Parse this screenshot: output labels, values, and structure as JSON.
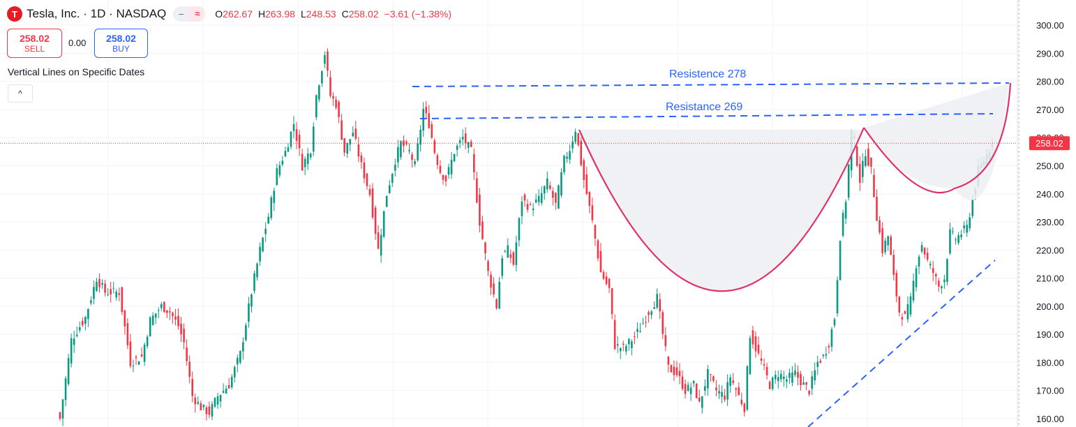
{
  "header": {
    "logo_letter": "T",
    "symbol_title": "Tesla, Inc. · 1D · NASDAQ",
    "open_label": "O",
    "open_value": "262.67",
    "high_label": "H",
    "high_value": "263.98",
    "low_label": "L",
    "low_value": "248.53",
    "close_label": "C",
    "close_value": "258.02",
    "change": "−3.61 (−1.38%)",
    "pill_minus": "−",
    "pill_wave": "≈"
  },
  "trade": {
    "sell_price": "258.02",
    "sell_label": "SELL",
    "spread": "0.00",
    "buy_price": "258.02",
    "buy_label": "BUY"
  },
  "indicator": {
    "name": "Vertical Lines on Specific Dates",
    "collapse_glyph": "^"
  },
  "colors": {
    "up": "#089981",
    "down": "#f23645",
    "drawing": "#e0306a",
    "resistance": "#2962ff",
    "fill": "#eceef2",
    "price_line": "#f23645"
  },
  "chart_data": {
    "type": "candlestick",
    "title": "Tesla, Inc. · 1D · NASDAQ",
    "ylim": [
      157,
      306
    ],
    "y_ticks": [
      "300.00",
      "290.00",
      "280.00",
      "270.00",
      "260.00",
      "250.00",
      "240.00",
      "230.00",
      "220.00",
      "210.00",
      "200.00",
      "190.00",
      "180.00",
      "170.00",
      "160.00"
    ],
    "last_price": "258.02",
    "close_series": [
      {
        "i": 0,
        "c": 160
      },
      {
        "i": 4,
        "c": 188
      },
      {
        "i": 9,
        "c": 196
      },
      {
        "i": 13,
        "c": 210
      },
      {
        "i": 16,
        "c": 205
      },
      {
        "i": 21,
        "c": 205
      },
      {
        "i": 25,
        "c": 180
      },
      {
        "i": 29,
        "c": 182
      },
      {
        "i": 32,
        "c": 195
      },
      {
        "i": 36,
        "c": 200
      },
      {
        "i": 39,
        "c": 198
      },
      {
        "i": 42,
        "c": 193
      },
      {
        "i": 44,
        "c": 187
      },
      {
        "i": 47,
        "c": 168
      },
      {
        "i": 50,
        "c": 164
      },
      {
        "i": 53,
        "c": 162
      },
      {
        "i": 56,
        "c": 168
      },
      {
        "i": 60,
        "c": 172
      },
      {
        "i": 64,
        "c": 183
      },
      {
        "i": 68,
        "c": 205
      },
      {
        "i": 71,
        "c": 220
      },
      {
        "i": 74,
        "c": 232
      },
      {
        "i": 77,
        "c": 248
      },
      {
        "i": 80,
        "c": 255
      },
      {
        "i": 83,
        "c": 265
      },
      {
        "i": 86,
        "c": 250
      },
      {
        "i": 89,
        "c": 256
      },
      {
        "i": 91,
        "c": 275
      },
      {
        "i": 94,
        "c": 290
      },
      {
        "i": 96,
        "c": 275
      },
      {
        "i": 98,
        "c": 272
      },
      {
        "i": 101,
        "c": 255
      },
      {
        "i": 104,
        "c": 262
      },
      {
        "i": 107,
        "c": 250
      },
      {
        "i": 110,
        "c": 240
      },
      {
        "i": 113,
        "c": 220
      },
      {
        "i": 116,
        "c": 240
      },
      {
        "i": 119,
        "c": 252
      },
      {
        "i": 121,
        "c": 258
      },
      {
        "i": 124,
        "c": 255
      },
      {
        "i": 126,
        "c": 250
      },
      {
        "i": 129,
        "c": 270
      },
      {
        "i": 131,
        "c": 265
      },
      {
        "i": 133,
        "c": 255
      },
      {
        "i": 135,
        "c": 248
      },
      {
        "i": 137,
        "c": 245
      },
      {
        "i": 140,
        "c": 255
      },
      {
        "i": 143,
        "c": 260
      },
      {
        "i": 146,
        "c": 255
      },
      {
        "i": 149,
        "c": 230
      },
      {
        "i": 152,
        "c": 212
      },
      {
        "i": 155,
        "c": 200
      },
      {
        "i": 157,
        "c": 218
      },
      {
        "i": 159,
        "c": 220
      },
      {
        "i": 161,
        "c": 215
      },
      {
        "i": 164,
        "c": 238
      },
      {
        "i": 167,
        "c": 235
      },
      {
        "i": 170,
        "c": 238
      },
      {
        "i": 173,
        "c": 244
      },
      {
        "i": 176,
        "c": 236
      },
      {
        "i": 179,
        "c": 252
      },
      {
        "i": 181,
        "c": 256
      },
      {
        "i": 183,
        "c": 263
      },
      {
        "i": 186,
        "c": 245
      },
      {
        "i": 189,
        "c": 230
      },
      {
        "i": 192,
        "c": 212
      },
      {
        "i": 195,
        "c": 206
      },
      {
        "i": 197,
        "c": 186
      },
      {
        "i": 200,
        "c": 185
      },
      {
        "i": 203,
        "c": 188
      },
      {
        "i": 206,
        "c": 192
      },
      {
        "i": 209,
        "c": 198
      },
      {
        "i": 212,
        "c": 203
      },
      {
        "i": 214,
        "c": 190
      },
      {
        "i": 216,
        "c": 178
      },
      {
        "i": 219,
        "c": 176
      },
      {
        "i": 222,
        "c": 170
      },
      {
        "i": 225,
        "c": 172
      },
      {
        "i": 227,
        "c": 165
      },
      {
        "i": 230,
        "c": 176
      },
      {
        "i": 233,
        "c": 170
      },
      {
        "i": 236,
        "c": 168
      },
      {
        "i": 238,
        "c": 175
      },
      {
        "i": 241,
        "c": 168
      },
      {
        "i": 243,
        "c": 164
      },
      {
        "i": 245,
        "c": 190
      },
      {
        "i": 247,
        "c": 185
      },
      {
        "i": 249,
        "c": 180
      },
      {
        "i": 252,
        "c": 172
      },
      {
        "i": 255,
        "c": 176
      },
      {
        "i": 258,
        "c": 174
      },
      {
        "i": 261,
        "c": 176
      },
      {
        "i": 264,
        "c": 172
      },
      {
        "i": 266,
        "c": 170
      },
      {
        "i": 269,
        "c": 180
      },
      {
        "i": 271,
        "c": 182
      },
      {
        "i": 273,
        "c": 187
      },
      {
        "i": 275,
        "c": 196
      },
      {
        "i": 277,
        "c": 225
      },
      {
        "i": 279,
        "c": 238
      },
      {
        "i": 281,
        "c": 262
      },
      {
        "i": 282,
        "c": 258
      },
      {
        "i": 284,
        "c": 245
      },
      {
        "i": 286,
        "c": 255
      },
      {
        "i": 288,
        "c": 248
      },
      {
        "i": 290,
        "c": 232
      },
      {
        "i": 292,
        "c": 220
      },
      {
        "i": 294,
        "c": 225
      },
      {
        "i": 296,
        "c": 210
      },
      {
        "i": 298,
        "c": 198
      },
      {
        "i": 300,
        "c": 196
      },
      {
        "i": 302,
        "c": 202
      },
      {
        "i": 304,
        "c": 215
      },
      {
        "i": 306,
        "c": 222
      },
      {
        "i": 308,
        "c": 216
      },
      {
        "i": 310,
        "c": 212
      },
      {
        "i": 312,
        "c": 207
      },
      {
        "i": 314,
        "c": 210
      },
      {
        "i": 316,
        "c": 226
      },
      {
        "i": 318,
        "c": 224
      },
      {
        "i": 320,
        "c": 226
      },
      {
        "i": 322,
        "c": 228
      },
      {
        "i": 324,
        "c": 238
      },
      {
        "i": 326,
        "c": 248
      },
      {
        "i": 328,
        "c": 252
      },
      {
        "i": 330,
        "c": 256
      },
      {
        "i": 331,
        "c": 258.02
      }
    ],
    "annotations": [
      {
        "text": "Resistence 278",
        "value": 278,
        "style": "dashed"
      },
      {
        "text": "Resistance 269",
        "value": 269,
        "style": "dashed"
      }
    ],
    "grid": true,
    "legend": "none"
  }
}
